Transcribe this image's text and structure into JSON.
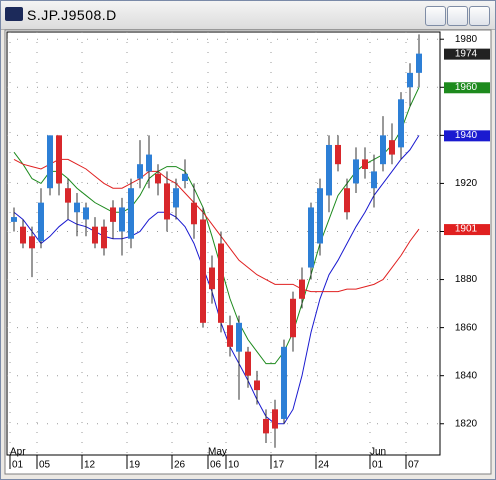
{
  "window": {
    "title": "S.JP.J9508.D"
  },
  "chart_data": {
    "type": "candlestick",
    "categories": [
      "01",
      null,
      null,
      "05",
      null,
      null,
      null,
      null,
      "12",
      null,
      null,
      null,
      null,
      "19",
      null,
      null,
      null,
      null,
      "26",
      null,
      null,
      null,
      "06",
      null,
      "10",
      null,
      null,
      null,
      null,
      "17",
      null,
      null,
      null,
      null,
      "24",
      null,
      null,
      null,
      null,
      null,
      "01",
      null,
      null,
      null,
      "07",
      null
    ],
    "month_categories": [
      "Apr",
      null,
      null,
      null,
      null,
      null,
      null,
      null,
      null,
      null,
      null,
      null,
      null,
      null,
      null,
      null,
      null,
      null,
      null,
      null,
      null,
      null,
      "May",
      null,
      null,
      null,
      null,
      null,
      null,
      null,
      null,
      null,
      null,
      null,
      null,
      null,
      null,
      null,
      null,
      null,
      "Jun",
      null,
      null,
      null,
      null,
      null
    ],
    "open": [
      1904,
      1902,
      1898,
      1896,
      1918,
      1940,
      1918,
      1908,
      1905,
      1902,
      1902,
      1910,
      1900,
      1897,
      1922,
      1925,
      1924,
      1920,
      1910,
      1921,
      1912,
      1905,
      1885,
      1895,
      1861,
      1850,
      1850,
      1838,
      1822,
      1826,
      1822,
      1872,
      1880,
      1885,
      1895,
      1915,
      1936,
      1918,
      1920,
      1930,
      1918,
      1928,
      1938,
      1935,
      1960,
      1966
    ],
    "high": [
      1910,
      1905,
      1902,
      1918,
      1940,
      1940,
      1922,
      1916,
      1912,
      1906,
      1905,
      1913,
      1914,
      1922,
      1938,
      1940,
      1928,
      1925,
      1922,
      1930,
      1920,
      1910,
      1890,
      1900,
      1865,
      1865,
      1852,
      1842,
      1826,
      1830,
      1855,
      1875,
      1885,
      1912,
      1922,
      1940,
      1940,
      1922,
      1935,
      1935,
      1932,
      1948,
      1945,
      1958,
      1970,
      1982
    ],
    "low": [
      1900,
      1893,
      1881,
      1893,
      1915,
      1915,
      1905,
      1898,
      1898,
      1893,
      1890,
      1897,
      1890,
      1893,
      1918,
      1918,
      1915,
      1900,
      1905,
      1918,
      1897,
      1860,
      1870,
      1858,
      1848,
      1830,
      1835,
      1828,
      1812,
      1810,
      1820,
      1850,
      1868,
      1880,
      1890,
      1908,
      1925,
      1905,
      1916,
      1922,
      1910,
      1925,
      1928,
      1930,
      1952,
      1960
    ],
    "close": [
      1906,
      1895,
      1893,
      1912,
      1940,
      1920,
      1912,
      1912,
      1910,
      1895,
      1893,
      1904,
      1910,
      1918,
      1928,
      1932,
      1920,
      1905,
      1918,
      1924,
      1903,
      1862,
      1876,
      1862,
      1852,
      1862,
      1840,
      1834,
      1816,
      1818,
      1852,
      1856,
      1872,
      1910,
      1918,
      1936,
      1928,
      1908,
      1930,
      1926,
      1925,
      1940,
      1932,
      1955,
      1966,
      1974
    ],
    "up_color": "#2d7fd6",
    "down_color": "#d8272b",
    "series": [
      {
        "color": "#1d8a1d",
        "values": [
          1933,
          1928,
          1922,
          1920,
          1925,
          1925,
          1922,
          1918,
          1915,
          1912,
          1910,
          1908,
          1908,
          1910,
          1915,
          1922,
          1925,
          1927,
          1927,
          1925,
          1918,
          1910,
          1898,
          1885,
          1872,
          1862,
          1855,
          1850,
          1845,
          1845,
          1850,
          1858,
          1870,
          1882,
          1895,
          1905,
          1915,
          1920,
          1925,
          1928,
          1930,
          1932,
          1936,
          1942,
          1952,
          1960
        ]
      },
      {
        "color": "#1a1ad0",
        "values": [
          1908,
          1905,
          1900,
          1895,
          1898,
          1902,
          1905,
          1903,
          1902,
          1900,
          1898,
          1897,
          1897,
          1898,
          1900,
          1905,
          1908,
          1908,
          1906,
          1902,
          1895,
          1885,
          1875,
          1862,
          1852,
          1845,
          1838,
          1830,
          1823,
          1820,
          1820,
          1826,
          1840,
          1858,
          1872,
          1882,
          1888,
          1895,
          1902,
          1908,
          1915,
          1920,
          1925,
          1930,
          1934,
          1940
        ]
      },
      {
        "color": "#e02020",
        "values": [
          1930,
          1928,
          1927,
          1926,
          1928,
          1930,
          1930,
          1928,
          1926,
          1923,
          1920,
          1918,
          1918,
          1920,
          1922,
          1925,
          1925,
          1922,
          1920,
          1916,
          1912,
          1908,
          1903,
          1898,
          1893,
          1888,
          1885,
          1882,
          1880,
          1878,
          1878,
          1878,
          1876,
          1875,
          1875,
          1875,
          1875,
          1876,
          1876,
          1877,
          1878,
          1880,
          1885,
          1890,
          1896,
          1901
        ]
      }
    ],
    "last_color": "#222222",
    "ylim": [
      1807,
      1983
    ],
    "yticks": [
      1820,
      1840,
      1860,
      1880,
      1900,
      1920,
      1940,
      1960,
      1980
    ],
    "grid": true
  }
}
